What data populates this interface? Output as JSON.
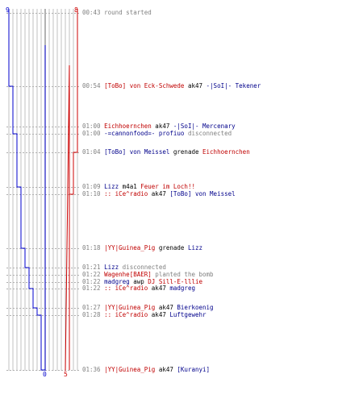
{
  "colors": {
    "team_a": "#0000cc",
    "team_b": "#cc0000",
    "grid": "#c0c0c0",
    "center_line": "#808080",
    "connector": "#b0b0b0",
    "text_red": "#c00000",
    "text_blue": "#00008b",
    "text_gray": "#808080"
  },
  "counts": {
    "team_a_start": "9",
    "team_b_start": "8",
    "team_a_end": "0",
    "team_b_end": "5"
  },
  "team_a_steps": [
    9,
    8,
    8,
    7,
    7,
    6,
    6,
    5,
    4,
    4,
    4,
    3,
    2,
    1,
    0,
    0
  ],
  "team_b_steps": [
    8,
    8,
    8,
    8,
    7,
    7,
    6,
    6,
    6,
    6,
    6,
    6,
    6,
    6,
    6,
    5
  ],
  "events": [
    {
      "name": "event-round-started",
      "parts": [
        {
          "text": "00:43 ",
          "c": "t"
        },
        {
          "text": "round started",
          "c": "gray"
        }
      ]
    },
    {
      "name": "event-kill",
      "parts": [
        {
          "text": "00:54 ",
          "c": "t"
        },
        {
          "text": "[ToBo] von Eck-Schwede",
          "c": "red"
        },
        {
          "text": " ak47 ",
          "c": "black"
        },
        {
          "text": "-|SoI|- Tekener",
          "c": "blue"
        }
      ]
    },
    {
      "name": "event-kill",
      "parts": [
        {
          "text": "01:00 ",
          "c": "t"
        },
        {
          "text": "Eichhoernchen",
          "c": "red"
        },
        {
          "text": " ak47 ",
          "c": "black"
        },
        {
          "text": "-|SoI|- Mercenary",
          "c": "blue"
        }
      ]
    },
    {
      "name": "event-disconnect",
      "parts": [
        {
          "text": "01:00 ",
          "c": "t"
        },
        {
          "text": "-=cannonfood=- profiuo",
          "c": "blue"
        },
        {
          "text": " disconnected",
          "c": "gray"
        }
      ]
    },
    {
      "name": "event-kill",
      "parts": [
        {
          "text": "01:04 ",
          "c": "t"
        },
        {
          "text": "[ToBo] von Meissel",
          "c": "blue"
        },
        {
          "text": " grenade ",
          "c": "black"
        },
        {
          "text": "Eichhoernchen",
          "c": "red"
        }
      ]
    },
    {
      "name": "event-kill",
      "parts": [
        {
          "text": "01:09 ",
          "c": "t"
        },
        {
          "text": "Lizz",
          "c": "blue"
        },
        {
          "text": " m4a1 ",
          "c": "black"
        },
        {
          "text": "Feuer im Loch!!",
          "c": "red"
        }
      ]
    },
    {
      "name": "event-kill",
      "parts": [
        {
          "text": "01:10 ",
          "c": "t"
        },
        {
          "text": ":: iCe^radio",
          "c": "red"
        },
        {
          "text": " ak47 ",
          "c": "black"
        },
        {
          "text": "[ToBo] von Meissel",
          "c": "blue"
        }
      ]
    },
    {
      "name": "event-kill",
      "parts": [
        {
          "text": "01:18 ",
          "c": "t"
        },
        {
          "text": "|YY|Guinea_Pig",
          "c": "red"
        },
        {
          "text": " grenade ",
          "c": "black"
        },
        {
          "text": "Lizz",
          "c": "blue"
        }
      ]
    },
    {
      "name": "event-disconnect",
      "parts": [
        {
          "text": "01:21 ",
          "c": "t"
        },
        {
          "text": "Lizz",
          "c": "blue"
        },
        {
          "text": " disconnected",
          "c": "gray"
        }
      ]
    },
    {
      "name": "event-bomb-planted",
      "parts": [
        {
          "text": "01:22 ",
          "c": "t"
        },
        {
          "text": "Wagenhe[BAER]",
          "c": "red"
        },
        {
          "text": " planted the bomb",
          "c": "gray"
        }
      ]
    },
    {
      "name": "event-kill",
      "parts": [
        {
          "text": "01:22 ",
          "c": "t"
        },
        {
          "text": "madgreg",
          "c": "blue"
        },
        {
          "text": " awp ",
          "c": "black"
        },
        {
          "text": "DJ Sill-E-lllie",
          "c": "red"
        }
      ]
    },
    {
      "name": "event-kill",
      "parts": [
        {
          "text": "01:22 ",
          "c": "t"
        },
        {
          "text": ":: iCe^radio",
          "c": "red"
        },
        {
          "text": " ak47 ",
          "c": "black"
        },
        {
          "text": "madgreg",
          "c": "blue"
        }
      ]
    },
    {
      "name": "event-kill",
      "parts": [
        {
          "text": "01:27 ",
          "c": "t"
        },
        {
          "text": "|YY|Guinea_Pig",
          "c": "red"
        },
        {
          "text": " ak47 ",
          "c": "black"
        },
        {
          "text": "Bierkoenig",
          "c": "blue"
        }
      ]
    },
    {
      "name": "event-kill",
      "parts": [
        {
          "text": "01:28 ",
          "c": "t"
        },
        {
          "text": ":: iCe^radio",
          "c": "red"
        },
        {
          "text": " ak47 ",
          "c": "black"
        },
        {
          "text": "Luftgewehr",
          "c": "blue"
        }
      ]
    },
    {
      "name": "event-kill",
      "parts": [
        {
          "text": "01:36 ",
          "c": "t"
        },
        {
          "text": "|YY|Guinea_Pig",
          "c": "red"
        },
        {
          "text": " ak47 ",
          "c": "black"
        },
        {
          "text": "[Kuranyi]",
          "c": "blue"
        }
      ]
    }
  ]
}
